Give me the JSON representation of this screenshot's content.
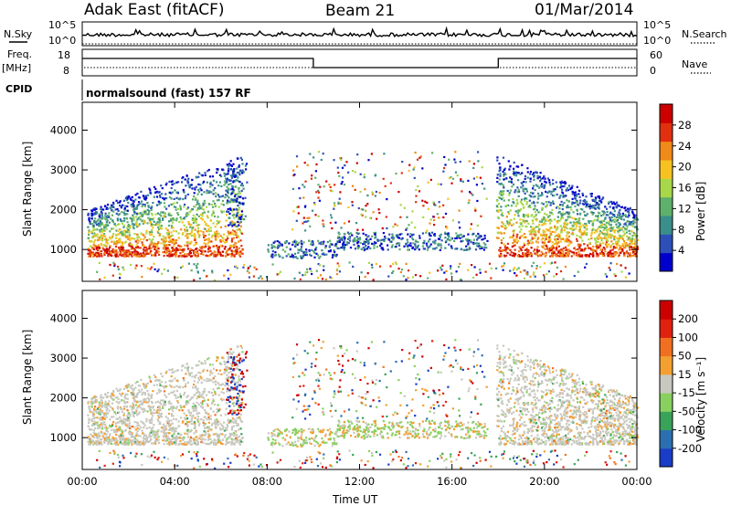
{
  "header": {
    "station": "Adak East (fitACF)",
    "beam": "Beam 21",
    "date": "01/Mar/2014"
  },
  "strip": {
    "nsky_label": "N.Sky",
    "nsearch_label": "N.Search",
    "nsky_ticks": [
      "10^5",
      "10^0"
    ],
    "nsearch_ticks": [
      "10^5",
      "10^0"
    ],
    "freq_label_line1": "Freq.",
    "freq_label_line2": "[MHz]",
    "freq_ticks": [
      "18",
      "8"
    ],
    "nave_label": "Nave",
    "nave_ticks": [
      "60",
      "0"
    ],
    "cpid_label": "CPID",
    "cpid_value": "normalsound (fast) 157 RF",
    "freq_steps": [
      {
        "start_h": 0,
        "end_h": 10,
        "level": "high"
      },
      {
        "start_h": 10,
        "end_h": 18,
        "level": "low"
      },
      {
        "start_h": 18,
        "end_h": 24,
        "level": "high"
      }
    ]
  },
  "chart_data": [
    {
      "type": "heatmap",
      "name": "power",
      "ylabel": "Slant Range [km]",
      "yticks": [
        "1000",
        "2000",
        "3000",
        "4000"
      ],
      "ylim": [
        200,
        4700
      ],
      "colorbar_title": "Power [dB]",
      "colorbar_ticks": [
        "4",
        "8",
        "12",
        "16",
        "20",
        "24",
        "28"
      ],
      "colorbar_colors": [
        "#0000cc",
        "#2d50b8",
        "#3a8f8a",
        "#5fb06a",
        "#a8d84a",
        "#f6c222",
        "#f08a18",
        "#e03010",
        "#cc0000"
      ],
      "echo_regions": [
        {
          "t0": 0.2,
          "t1": 6.9,
          "r0": 800,
          "r1": 3300,
          "note": "morning F-region scatter, strong near 900-1200 km"
        },
        {
          "t0": 7.0,
          "t1": 17.6,
          "r0": 600,
          "r1": 1600,
          "note": "weak scatter band near 1000-1500 km"
        },
        {
          "t0": 17.9,
          "t1": 24.0,
          "r0": 800,
          "r1": 3300,
          "note": "evening F-region scatter, strong near 900-1200 km"
        }
      ]
    },
    {
      "type": "heatmap",
      "name": "velocity",
      "ylabel": "Slant Range [km]",
      "yticks": [
        "1000",
        "2000",
        "3000",
        "4000"
      ],
      "ylim": [
        200,
        4700
      ],
      "colorbar_title": "Velocity [m s⁻¹]",
      "colorbar_ticks": [
        "200",
        "100",
        "50",
        "15",
        "-15",
        "-50",
        "-100",
        "-200"
      ],
      "colorbar_colors": [
        "#1a3dc8",
        "#2c6fb0",
        "#3aa35a",
        "#88d060",
        "#c8c8c0",
        "#f4a030",
        "#f07020",
        "#e02010",
        "#cc0000"
      ],
      "echo_regions": [
        {
          "t0": 0.2,
          "t1": 6.9,
          "r0": 800,
          "r1": 3300,
          "note": "mostly low velocity (grey)"
        },
        {
          "t0": 7.0,
          "t1": 17.6,
          "r0": 600,
          "r1": 1600,
          "note": "mixed green/orange band"
        },
        {
          "t0": 17.9,
          "t1": 24.0,
          "r0": 800,
          "r1": 3300,
          "note": "mostly low velocity (grey), green streaks"
        }
      ]
    }
  ],
  "x_axis": {
    "label": "Time UT",
    "ticks": [
      "00:00",
      "04:00",
      "08:00",
      "12:00",
      "16:00",
      "20:00",
      "00:00"
    ],
    "xlim_hours": [
      0,
      24
    ]
  }
}
